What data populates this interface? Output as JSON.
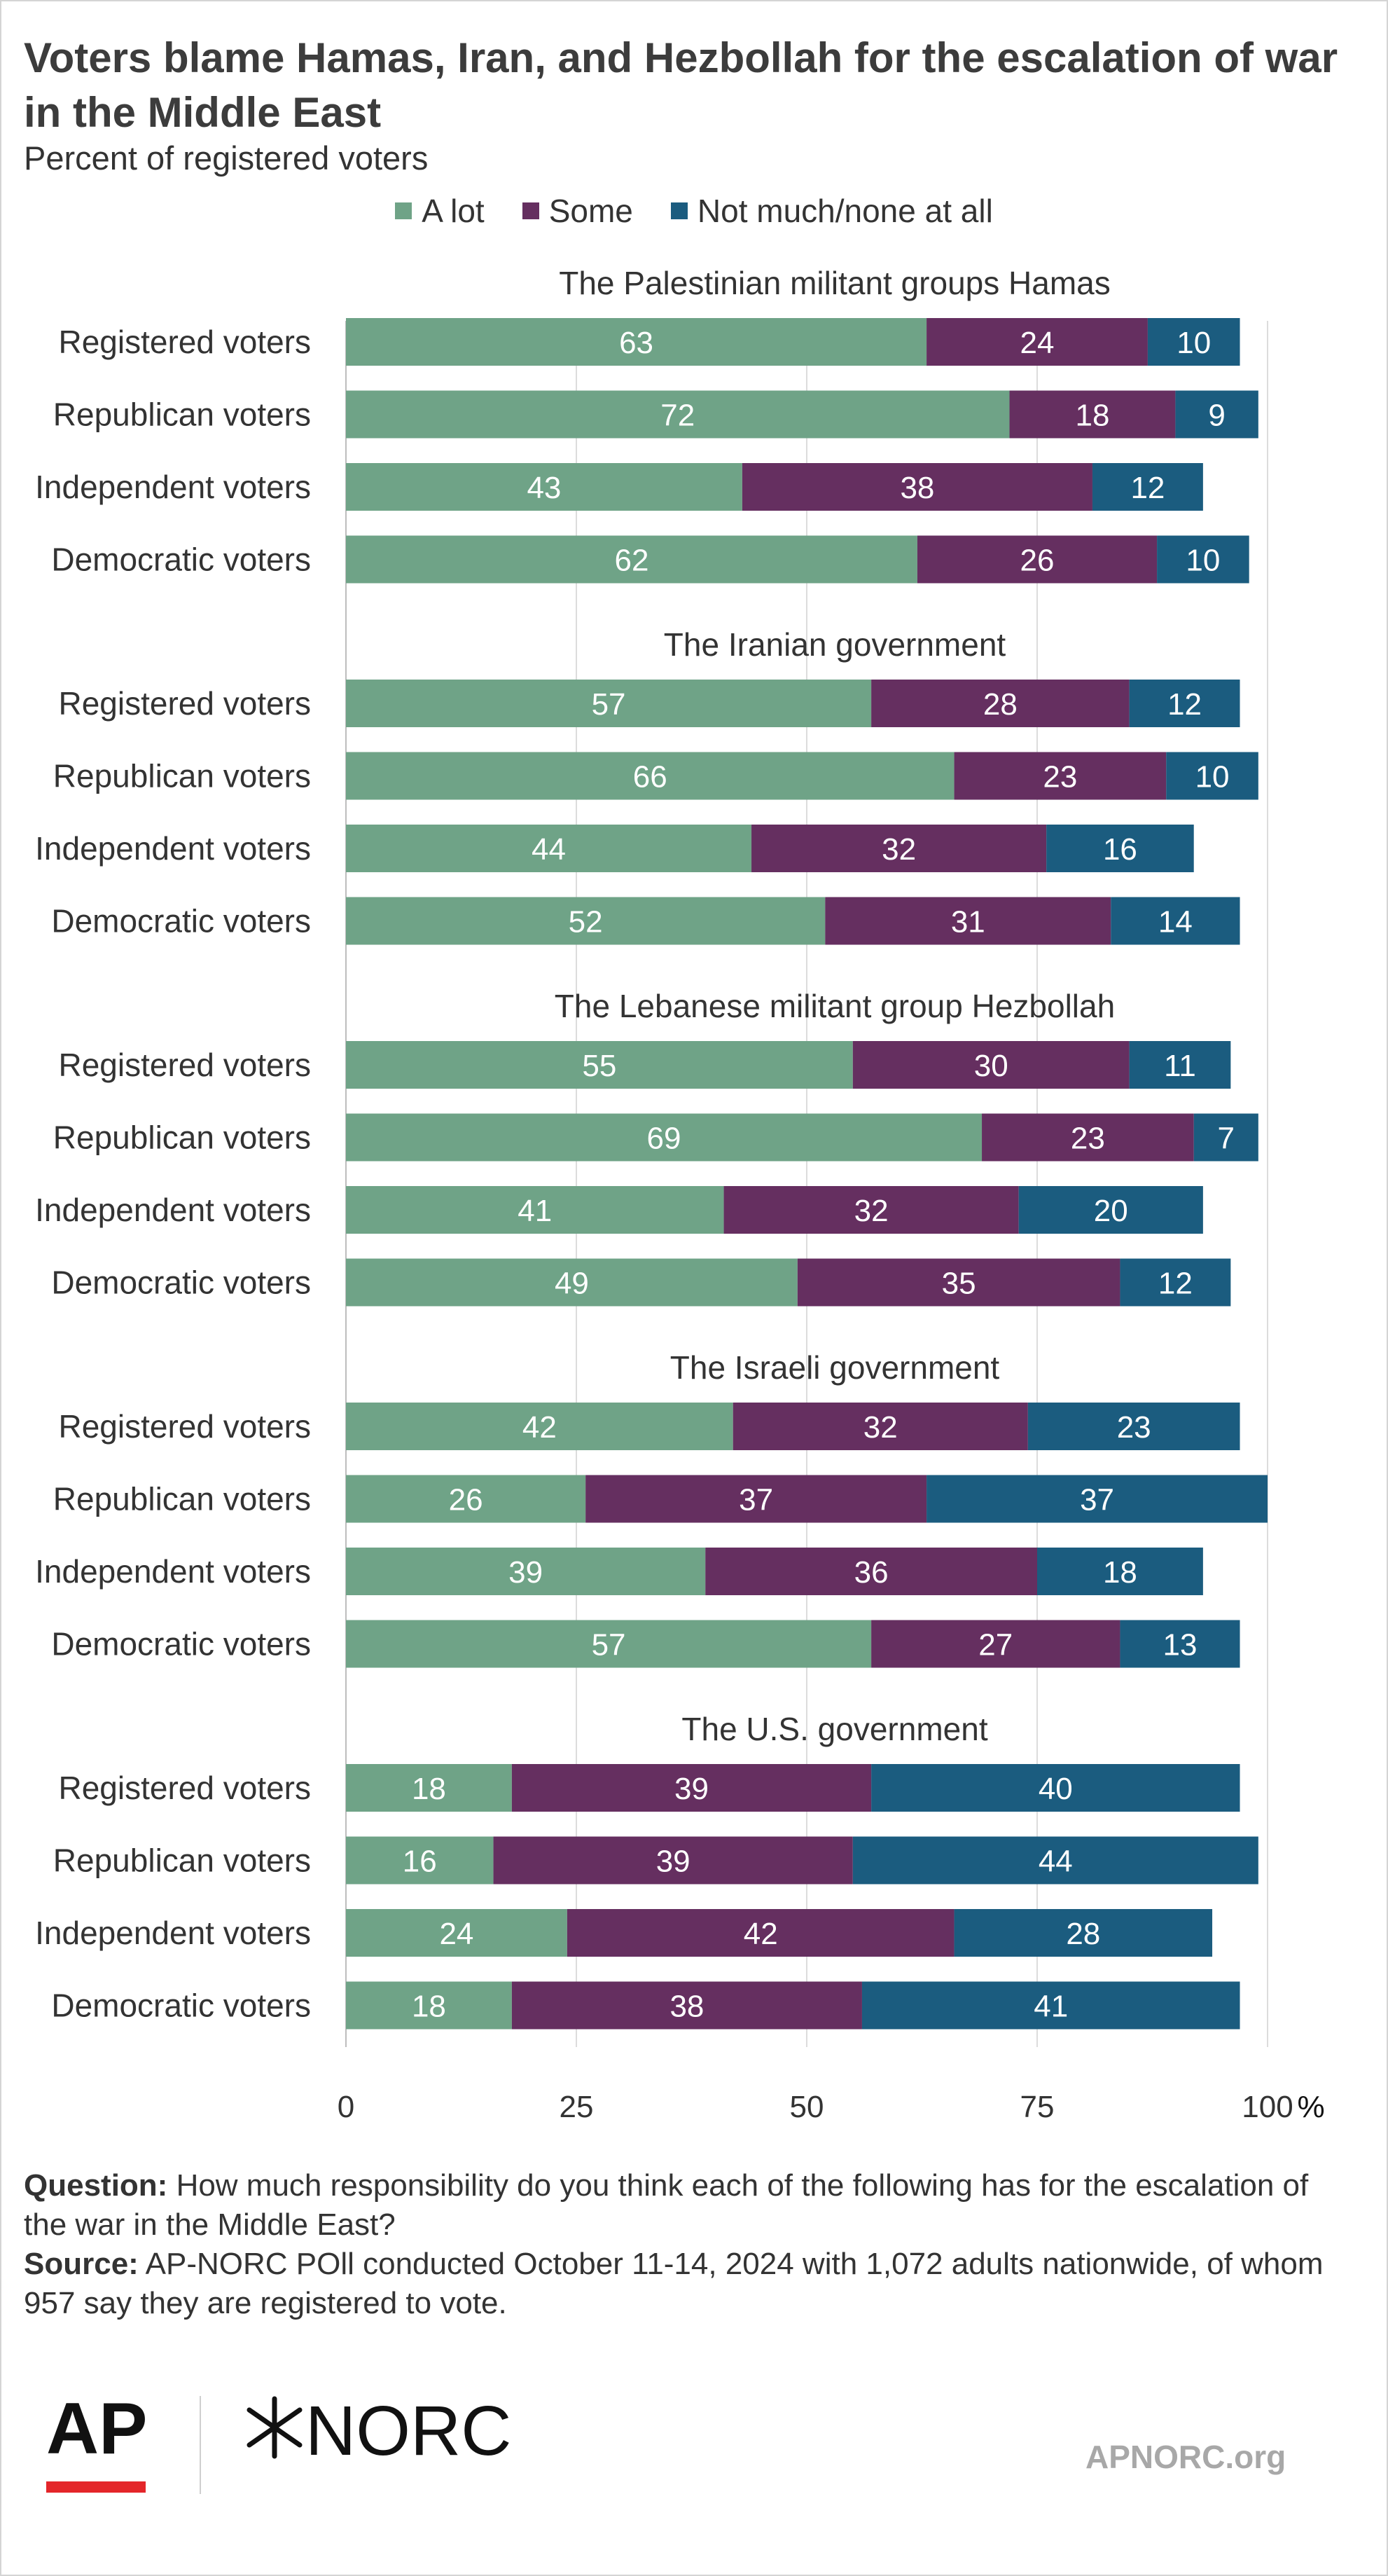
{
  "title": "Voters blame Hamas, Iran, and Hezbollah for the escalation of war in the Middle East",
  "subtitle": "Percent of registered voters",
  "colors": {
    "a_lot": "#6fa387",
    "some": "#652f60",
    "not_much": "#1b5c7f",
    "grid": "#dcdcdc",
    "text": "#333333"
  },
  "chart_data": {
    "type": "bar",
    "orientation": "horizontal",
    "stacked": true,
    "xlim": [
      0,
      100
    ],
    "x_ticks": [
      "0",
      "25",
      "50",
      "75",
      "100"
    ],
    "x_unit": "%",
    "legend_position": "top",
    "grid": true,
    "series": [
      {
        "name": "A lot",
        "color": "#6fa387"
      },
      {
        "name": "Some",
        "color": "#652f60"
      },
      {
        "name": "Not much/none at all",
        "color": "#1b5c7f"
      }
    ],
    "groups": [
      {
        "title": "The Palestinian militant groups Hamas",
        "rows": [
          {
            "label": "Registered voters",
            "values": [
              63,
              24,
              10
            ]
          },
          {
            "label": "Republican voters",
            "values": [
              72,
              18,
              9
            ]
          },
          {
            "label": "Independent voters",
            "values": [
              43,
              38,
              12
            ]
          },
          {
            "label": "Democratic voters",
            "values": [
              62,
              26,
              10
            ]
          }
        ]
      },
      {
        "title": "The Iranian government",
        "rows": [
          {
            "label": "Registered voters",
            "values": [
              57,
              28,
              12
            ]
          },
          {
            "label": "Republican voters",
            "values": [
              66,
              23,
              10
            ]
          },
          {
            "label": "Independent voters",
            "values": [
              44,
              32,
              16
            ]
          },
          {
            "label": "Democratic voters",
            "values": [
              52,
              31,
              14
            ]
          }
        ]
      },
      {
        "title": "The Lebanese militant group Hezbollah",
        "rows": [
          {
            "label": "Registered voters",
            "values": [
              55,
              30,
              11
            ]
          },
          {
            "label": "Republican voters",
            "values": [
              69,
              23,
              7
            ]
          },
          {
            "label": "Independent voters",
            "values": [
              41,
              32,
              20
            ]
          },
          {
            "label": "Democratic voters",
            "values": [
              49,
              35,
              12
            ]
          }
        ]
      },
      {
        "title": "The Israeli government",
        "rows": [
          {
            "label": "Registered voters",
            "values": [
              42,
              32,
              23
            ]
          },
          {
            "label": "Republican voters",
            "values": [
              26,
              37,
              37
            ]
          },
          {
            "label": "Independent voters",
            "values": [
              39,
              36,
              18
            ]
          },
          {
            "label": "Democratic voters",
            "values": [
              57,
              27,
              13
            ]
          }
        ]
      },
      {
        "title": "The U.S. government",
        "rows": [
          {
            "label": "Registered voters",
            "values": [
              18,
              39,
              40
            ]
          },
          {
            "label": "Republican voters",
            "values": [
              16,
              39,
              44
            ]
          },
          {
            "label": "Independent voters",
            "values": [
              24,
              42,
              28
            ]
          },
          {
            "label": "Democratic voters",
            "values": [
              18,
              38,
              41
            ]
          }
        ]
      }
    ]
  },
  "footer": {
    "question_label": "Question:",
    "question_text": "How much responsibility do you think each of the following has for the escalation of the war in the Middle East?",
    "source_label": "Source:",
    "source_text": "AP-NORC POll conducted October 11-14, 2024 with 1,072 adults nationwide, of whom 957 say they are registered to vote."
  },
  "logos": {
    "ap": "AP",
    "norc": "NORC",
    "norc_icon": "asterisk-icon"
  },
  "site": "APNORC.org"
}
